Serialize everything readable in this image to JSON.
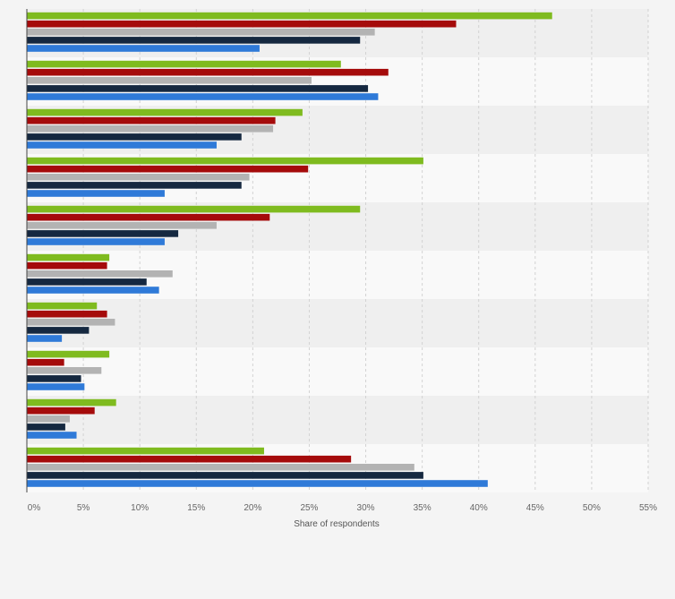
{
  "chart_data": {
    "type": "bar",
    "orientation": "horizontal",
    "xlabel": "Share of respondents",
    "ylabel": "",
    "xlim": [
      0,
      55
    ],
    "x_ticks": [
      "0%",
      "5%",
      "10%",
      "15%",
      "20%",
      "25%",
      "30%",
      "35%",
      "40%",
      "45%",
      "50%",
      "55%"
    ],
    "grid": "vertical dashed",
    "categories": [
      "",
      "",
      "",
      "",
      "",
      "",
      "",
      "",
      "",
      ""
    ],
    "series": [
      {
        "color": "#7fbb1f",
        "values": [
          46.5,
          27.8,
          24.4,
          35.1,
          29.5,
          7.3,
          6.2,
          7.3,
          7.9,
          21
        ]
      },
      {
        "color": "#a50b0b",
        "values": [
          38,
          32,
          22,
          24.9,
          21.5,
          7.1,
          7.1,
          3.3,
          6,
          28.7
        ]
      },
      {
        "color": "#b3b3b3",
        "values": [
          30.8,
          25.2,
          21.8,
          19.7,
          16.8,
          12.9,
          7.8,
          6.6,
          3.8,
          34.3
        ]
      },
      {
        "color": "#152840",
        "values": [
          29.5,
          30.2,
          19,
          19,
          13.4,
          10.6,
          5.5,
          4.8,
          3.4,
          35.1
        ]
      },
      {
        "color": "#2f7ad8",
        "values": [
          20.6,
          31.1,
          16.8,
          12.2,
          12.2,
          11.7,
          3.1,
          5.1,
          4.4,
          40.8
        ]
      }
    ]
  }
}
